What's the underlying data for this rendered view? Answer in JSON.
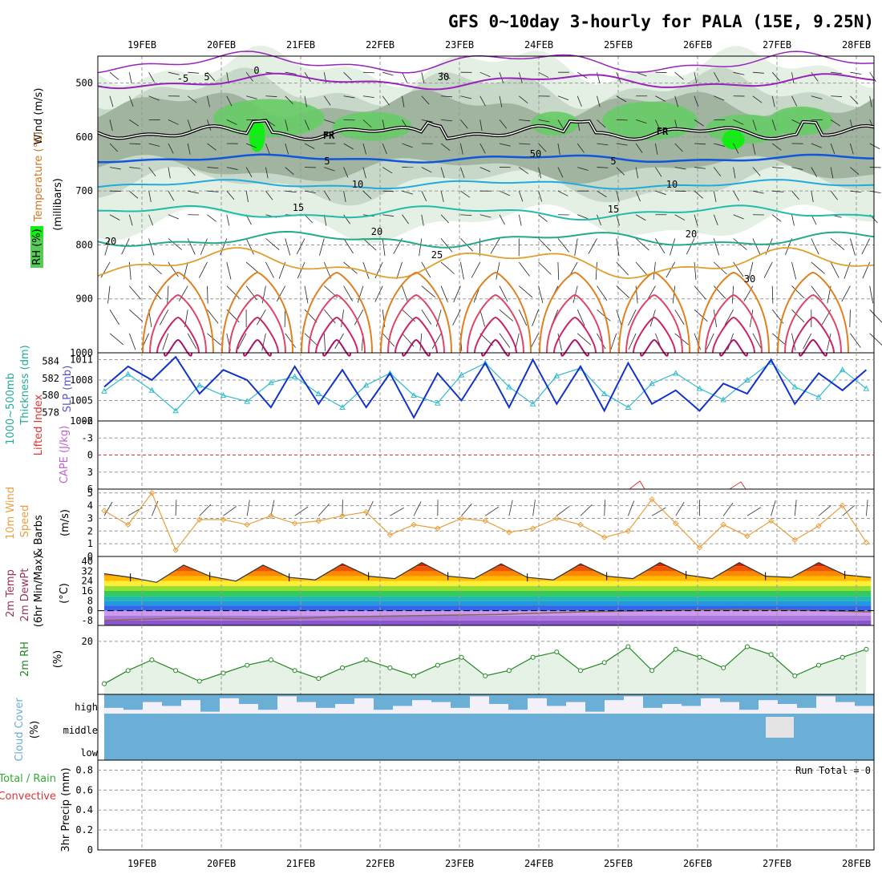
{
  "chart_data": [
    {
      "type": "contour",
      "panel": "upper-air",
      "title": "GFS 0~10day 3-hourly for PALA (15E, 9.25N)",
      "ylabel": [
        "Wind (m/s)",
        "Temperature (°C)",
        "RH (%)",
        "(millibars)"
      ],
      "x_ticks": [
        "19FEB",
        "20FEB",
        "21FEB",
        "22FEB",
        "23FEB",
        "24FEB",
        "25FEB",
        "26FEB",
        "27FEB",
        "28FEB"
      ],
      "y_ticks": [
        "500",
        "600",
        "700",
        "800",
        "900",
        "1000"
      ],
      "ylim": [
        450,
        1000
      ],
      "y_reversed": true,
      "contour_labels": [
        "5",
        "0",
        "-5",
        "5",
        "10",
        "15",
        "20",
        "25",
        "30",
        "FR",
        "50",
        "30"
      ],
      "rh_legend_labels": [
        "RH (%)"
      ]
    },
    {
      "type": "line",
      "panel": "thickness-slp",
      "ylabel_left": [
        "1000~500mb",
        "Thickness (dm)"
      ],
      "ylabel_right": "SLP (mb)",
      "left_ticks": [
        "584",
        "582",
        "580",
        "578"
      ],
      "right_ticks": [
        "1011",
        "1008",
        "1005",
        "1002"
      ],
      "left_range": [
        577,
        585
      ],
      "right_range": [
        1002,
        1012
      ],
      "series": [
        {
          "name": "Thickness",
          "color": "#33bbcc",
          "axis": "left",
          "x": [
            0,
            0.3,
            0.6,
            0.9,
            1.2,
            1.5,
            1.8,
            2.1,
            2.4,
            2.7,
            3.0,
            3.3,
            3.6,
            3.9,
            4.2,
            4.5,
            4.8,
            5.1,
            5.4,
            5.7,
            6.0,
            6.3,
            6.6,
            6.9,
            7.2,
            7.5,
            7.8,
            8.1,
            8.4,
            8.7,
            9.0,
            9.3,
            9.6
          ],
          "values": [
            580.5,
            582.5,
            580.6,
            578.2,
            581.2,
            580,
            579.3,
            581.5,
            582.2,
            580.2,
            578.6,
            581.2,
            582.6,
            580,
            579.1,
            582.4,
            583.8,
            581,
            579,
            582.3,
            583.2,
            580.2,
            578.6,
            581.4,
            582.6,
            580.8,
            579.5,
            581.8,
            583.9,
            581,
            579.8,
            583,
            580.8
          ]
        },
        {
          "name": "SLP",
          "color": "#1133cc",
          "axis": "right",
          "x": [
            0,
            0.3,
            0.6,
            0.9,
            1.2,
            1.5,
            1.8,
            2.1,
            2.4,
            2.7,
            3.0,
            3.3,
            3.6,
            3.9,
            4.2,
            4.5,
            4.8,
            5.1,
            5.4,
            5.7,
            6.0,
            6.3,
            6.6,
            6.9,
            7.2,
            7.5,
            7.8,
            8.1,
            8.4,
            8.7,
            9.0,
            9.3,
            9.6
          ],
          "values": [
            1007,
            1010,
            1008,
            1011.4,
            1006,
            1009.5,
            1008,
            1004,
            1010,
            1004.5,
            1009.5,
            1004,
            1009,
            1002.5,
            1009,
            1005,
            1010.5,
            1004,
            1011,
            1004.5,
            1010,
            1003.5,
            1010.5,
            1004.5,
            1006.5,
            1003.5,
            1007.5,
            1006,
            1011,
            1004.5,
            1009,
            1006.5,
            1009.5
          ]
        }
      ]
    },
    {
      "type": "line",
      "panel": "lifted-index-cape",
      "ylabel_left": "Lifted Index",
      "ylabel_right": "CAPE (J/kg)",
      "y_ticks": [
        "-6",
        "-3",
        "0",
        "3",
        "6"
      ],
      "ylim": [
        -6,
        6
      ],
      "zero_line": 0
    },
    {
      "type": "line",
      "panel": "10m-wind",
      "ylabel": [
        "10m Wind",
        "Speed",
        "& Barbs",
        "(m/s)"
      ],
      "y_ticks": [
        "5",
        "4",
        "3",
        "2",
        "1",
        "0"
      ],
      "ylim": [
        0,
        5.3
      ],
      "series": [
        {
          "name": "Wind Speed",
          "color": "#e8a040",
          "x": [
            0,
            0.3,
            0.6,
            0.9,
            1.2,
            1.5,
            1.8,
            2.1,
            2.4,
            2.7,
            3.0,
            3.3,
            3.6,
            3.9,
            4.2,
            4.5,
            4.8,
            5.1,
            5.4,
            5.7,
            6.0,
            6.3,
            6.6,
            6.9,
            7.2,
            7.5,
            7.8,
            8.1,
            8.4,
            8.7,
            9.0,
            9.3,
            9.6
          ],
          "values": [
            3.6,
            2.5,
            5,
            0.5,
            2.9,
            2.9,
            2.5,
            3.2,
            2.6,
            2.8,
            3.2,
            3.5,
            1.7,
            2.5,
            2.2,
            3,
            2.8,
            1.9,
            2.2,
            3,
            2.5,
            1.5,
            2,
            4.5,
            2.6,
            0.7,
            2.5,
            1.6,
            2.8,
            1.3,
            2.4,
            4,
            1.1
          ]
        }
      ]
    },
    {
      "type": "area",
      "panel": "2m-temp",
      "ylabel": [
        "2m Temp",
        "2m DewPt",
        "(6hr Min/Max)",
        "(°C)"
      ],
      "y_ticks": [
        "40",
        "32",
        "24",
        "16",
        "8",
        "0",
        "-8"
      ],
      "ylim": [
        -12,
        44
      ],
      "series": [
        {
          "name": "2m Temp",
          "x": [
            0,
            0.33,
            0.66,
            1,
            1.33,
            1.66,
            2,
            2.33,
            2.66,
            3,
            3.33,
            3.66,
            4,
            4.33,
            4.66,
            5,
            5.33,
            5.66,
            6,
            6.33,
            6.66,
            7,
            7.33,
            7.66,
            8,
            8.33,
            8.66,
            9,
            9.33,
            9.66
          ],
          "values": [
            30,
            27,
            23,
            37,
            28,
            24,
            37,
            27,
            25,
            38,
            28,
            26,
            39,
            28,
            26,
            38,
            27,
            25,
            38,
            28,
            26,
            39,
            29,
            26,
            39,
            28,
            27,
            39,
            29,
            27
          ]
        },
        {
          "name": "2m DewPt",
          "x": [
            0,
            1,
            2,
            3,
            4,
            5,
            6,
            7,
            8,
            9,
            9.66
          ],
          "values": [
            -8,
            -6,
            -7,
            -5,
            -4,
            -3,
            -1,
            0,
            1,
            0,
            -1
          ]
        }
      ]
    },
    {
      "type": "line",
      "panel": "2m-rh",
      "ylabel": [
        "2m RH",
        "(%)"
      ],
      "y_ticks": [
        "20"
      ],
      "ylim": [
        0,
        26
      ],
      "series": [
        {
          "name": "2m RH",
          "color": "#228822",
          "x": [
            0,
            0.3,
            0.6,
            0.9,
            1.2,
            1.5,
            1.8,
            2.1,
            2.4,
            2.7,
            3.0,
            3.3,
            3.6,
            3.9,
            4.2,
            4.5,
            4.8,
            5.1,
            5.4,
            5.7,
            6.0,
            6.3,
            6.6,
            6.9,
            7.2,
            7.5,
            7.8,
            8.1,
            8.4,
            8.7,
            9.0,
            9.3,
            9.6
          ],
          "values": [
            4,
            9,
            13,
            9,
            5,
            8,
            11,
            13,
            9,
            6,
            10,
            13,
            10,
            7,
            11,
            14,
            7,
            9,
            14,
            16,
            9,
            12,
            18,
            9,
            17,
            14,
            10,
            18,
            15,
            7,
            11,
            14,
            17
          ]
        }
      ]
    },
    {
      "type": "heatmap",
      "panel": "cloud-cover",
      "ylabel": [
        "Cloud Cover",
        "(%)"
      ],
      "levels": [
        "high",
        "middle",
        "low"
      ],
      "colors": {
        "cloud": "#6baed6",
        "clear": "#f4f0fa"
      }
    },
    {
      "type": "bar",
      "panel": "precip",
      "ylabel": [
        "3hr Precip (mm)",
        "Total / Rain",
        "Convective"
      ],
      "y_ticks": [
        "0.8",
        "0.6",
        "0.4",
        "0.2",
        "0"
      ],
      "ylim": [
        0,
        0.9
      ],
      "values": [],
      "annotation": "Run Total = 0"
    }
  ]
}
